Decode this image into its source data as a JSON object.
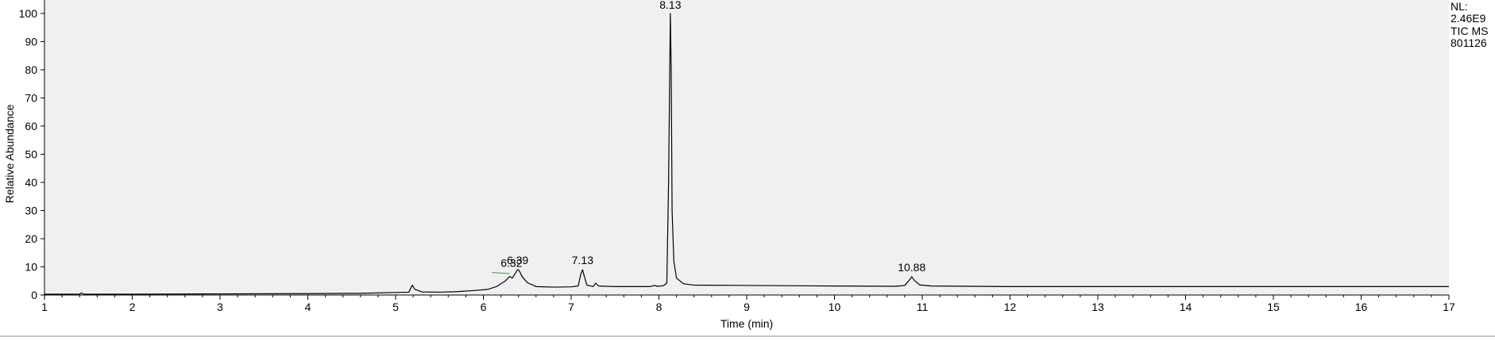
{
  "chart_data": {
    "type": "line",
    "xlabel": "Time (min)",
    "ylabel": "Relative Abundance",
    "xlim": [
      1,
      17
    ],
    "ylim": [
      0,
      100
    ],
    "x_ticks": [
      "1",
      "2",
      "3",
      "4",
      "5",
      "6",
      "7",
      "8",
      "9",
      "10",
      "11",
      "12",
      "13",
      "14",
      "15",
      "16",
      "17"
    ],
    "y_ticks": [
      "0",
      "10",
      "20",
      "30",
      "40",
      "50",
      "60",
      "70",
      "80",
      "90",
      "100"
    ],
    "grid": false,
    "info_labels": [
      "NL:",
      "2.46E9",
      "TIC  MS",
      "801126"
    ],
    "peak_labels": [
      {
        "text": "6.32",
        "x": 6.32,
        "y": 8
      },
      {
        "text": "6.39",
        "x": 6.39,
        "y": 9
      },
      {
        "text": "7.13",
        "x": 7.13,
        "y": 9
      },
      {
        "text": "8.13",
        "x": 8.13,
        "y": 100
      },
      {
        "text": "10.88",
        "x": 10.88,
        "y": 6.5
      }
    ],
    "series": [
      {
        "color": "#000000",
        "points": [
          [
            1.0,
            0.3
          ],
          [
            1.4,
            0.3
          ],
          [
            1.42,
            0.7
          ],
          [
            1.45,
            0.3
          ],
          [
            2.0,
            0.3
          ],
          [
            3.0,
            0.4
          ],
          [
            4.0,
            0.5
          ],
          [
            4.6,
            0.6
          ],
          [
            5.0,
            0.9
          ],
          [
            5.15,
            1.0
          ],
          [
            5.19,
            3.5
          ],
          [
            5.22,
            2.0
          ],
          [
            5.3,
            1.1
          ],
          [
            5.5,
            1.0
          ],
          [
            5.7,
            1.2
          ],
          [
            5.9,
            1.6
          ],
          [
            6.05,
            2.0
          ],
          [
            6.15,
            3.0
          ],
          [
            6.25,
            5.0
          ],
          [
            6.3,
            6.6
          ],
          [
            6.33,
            6.0
          ],
          [
            6.36,
            7.5
          ],
          [
            6.39,
            9.0
          ],
          [
            6.41,
            8.6
          ],
          [
            6.44,
            6.6
          ],
          [
            6.5,
            4.4
          ],
          [
            6.6,
            3.0
          ],
          [
            6.8,
            2.8
          ],
          [
            7.0,
            2.9
          ],
          [
            7.08,
            3.2
          ],
          [
            7.11,
            7.4
          ],
          [
            7.13,
            9.0
          ],
          [
            7.15,
            6.6
          ],
          [
            7.18,
            3.5
          ],
          [
            7.25,
            3.0
          ],
          [
            7.28,
            4.2
          ],
          [
            7.31,
            3.2
          ],
          [
            7.5,
            3.0
          ],
          [
            7.9,
            3.0
          ],
          [
            7.95,
            3.4
          ],
          [
            7.98,
            3.1
          ],
          [
            8.05,
            3.3
          ],
          [
            8.09,
            4.2
          ],
          [
            8.11,
            40.0
          ],
          [
            8.13,
            100.0
          ],
          [
            8.14,
            80.0
          ],
          [
            8.15,
            30.0
          ],
          [
            8.17,
            12.0
          ],
          [
            8.2,
            6.0
          ],
          [
            8.28,
            4.0
          ],
          [
            8.4,
            3.5
          ],
          [
            9.0,
            3.4
          ],
          [
            10.0,
            3.2
          ],
          [
            10.7,
            3.1
          ],
          [
            10.8,
            3.4
          ],
          [
            10.85,
            5.2
          ],
          [
            10.88,
            6.5
          ],
          [
            10.91,
            5.2
          ],
          [
            10.97,
            3.6
          ],
          [
            11.1,
            3.2
          ],
          [
            12.0,
            3.0
          ],
          [
            14.0,
            3.0
          ],
          [
            16.0,
            3.0
          ],
          [
            17.0,
            3.0
          ]
        ]
      }
    ]
  }
}
